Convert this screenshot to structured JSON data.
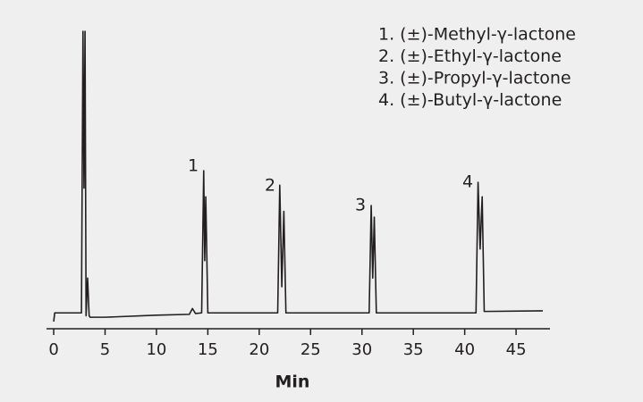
{
  "chart_data": {
    "type": "line",
    "x_label": "Min",
    "legend_items": [
      "1. (±)-Methyl-γ-lactone",
      "2. (±)-Ethyl-γ-lactone",
      "3. (±)-Propyl-γ-lactone",
      "4. (±)-Butyl-γ-lactone"
    ],
    "peak_labels": [
      "1",
      "2",
      "3",
      "4"
    ],
    "color": "#231f20",
    "x": [
      0,
      0.1,
      2.7,
      2.85,
      2.95,
      3.05,
      3.15,
      3.3,
      3.45,
      3.55,
      5,
      10,
      13.2,
      13.5,
      13.8,
      14.4,
      14.6,
      14.7,
      14.8,
      15.0,
      21.8,
      22.0,
      22.2,
      22.4,
      22.6,
      30.7,
      30.9,
      31.05,
      31.2,
      31.4,
      41.1,
      41.3,
      41.5,
      41.7,
      41.9,
      47.6
    ],
    "values": [
      0,
      3,
      3,
      100,
      46,
      100,
      2,
      15,
      2,
      1.5,
      1.5,
      2.2,
      2.5,
      4.5,
      2.8,
      3,
      52,
      21,
      43,
      3,
      3,
      47,
      12,
      38,
      3,
      3,
      40,
      15,
      36,
      3,
      3,
      48,
      25,
      43,
      3.5,
      3.7
    ],
    "xlim": [
      -0.7,
      48.3
    ],
    "ylim": [
      0,
      100
    ],
    "xticks": [
      0,
      5,
      10,
      15,
      20,
      25,
      30,
      35,
      40,
      45
    ]
  }
}
